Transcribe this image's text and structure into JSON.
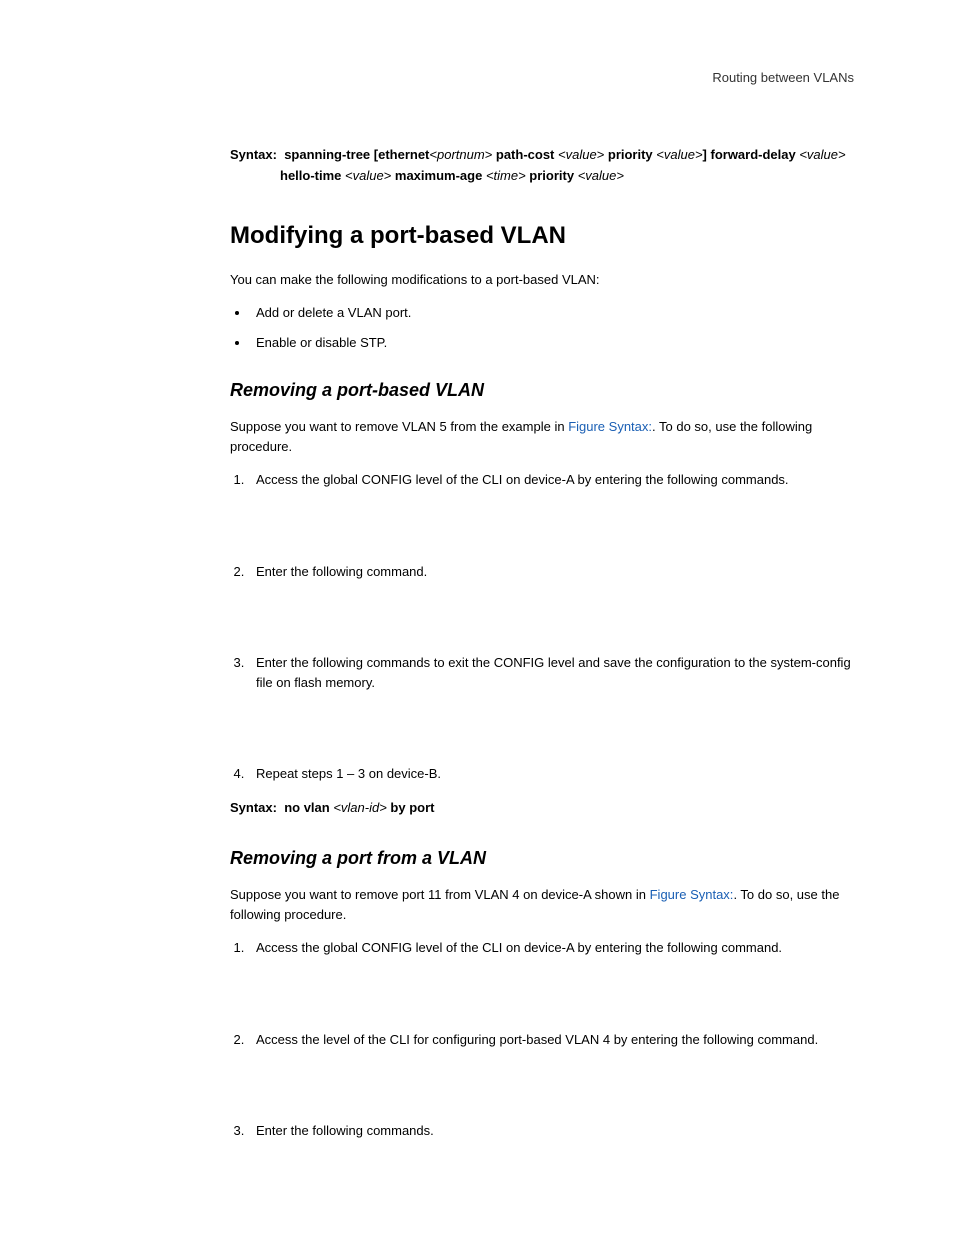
{
  "header": {
    "label": "Routing between VLANs"
  },
  "syntax1": {
    "prefix": "Syntax:",
    "p1": "spanning-tree [ethernet",
    "portnum": "<portnum>",
    "p2": " path-cost ",
    "value1": "<value>",
    "p3": " priority ",
    "value2": "<value>",
    "p4": "] forward-delay ",
    "value3": "<value>",
    "p5": " hello-time ",
    "value4": "<value>",
    "p6": " maximum-age ",
    "time": "<time>",
    "p7": " priority ",
    "value5": "<value>"
  },
  "h1": "Modifying a port-based VLAN",
  "intro": "You can make the following modifications to a port-based VLAN:",
  "bullets": {
    "b1": "Add or delete a VLAN port.",
    "b2": "Enable or disable STP."
  },
  "h2a": "Removing a port-based VLAN",
  "paraA": {
    "pre": "Suppose you want to remove VLAN 5 from the example in ",
    "link": "Figure Syntax:",
    "post": ". To do so, use the following procedure."
  },
  "listA": {
    "i1": "Access the global CONFIG level of the CLI on device-A by entering the following commands.",
    "i2": "Enter the following command.",
    "i3": "Enter the following commands to exit the CONFIG level and save the configuration to the system-config file on flash memory.",
    "i4": "Repeat steps 1 – 3 on device-B."
  },
  "syntax2": {
    "prefix": "Syntax:",
    "p1": "no vlan ",
    "vlanid": "<vlan-id>",
    "p2": " by port"
  },
  "h2b": "Removing a port from a VLAN",
  "paraB": {
    "pre": "Suppose you want to remove port 11 from VLAN 4 on device-A shown in ",
    "link": "Figure Syntax:",
    "post": ". To do so, use the following procedure."
  },
  "listB": {
    "i1": "Access the global CONFIG level of the CLI on device-A by entering the following command.",
    "i2": "Access the level of the CLI for configuring port-based VLAN 4 by entering the following command.",
    "i3": "Enter the following commands."
  }
}
